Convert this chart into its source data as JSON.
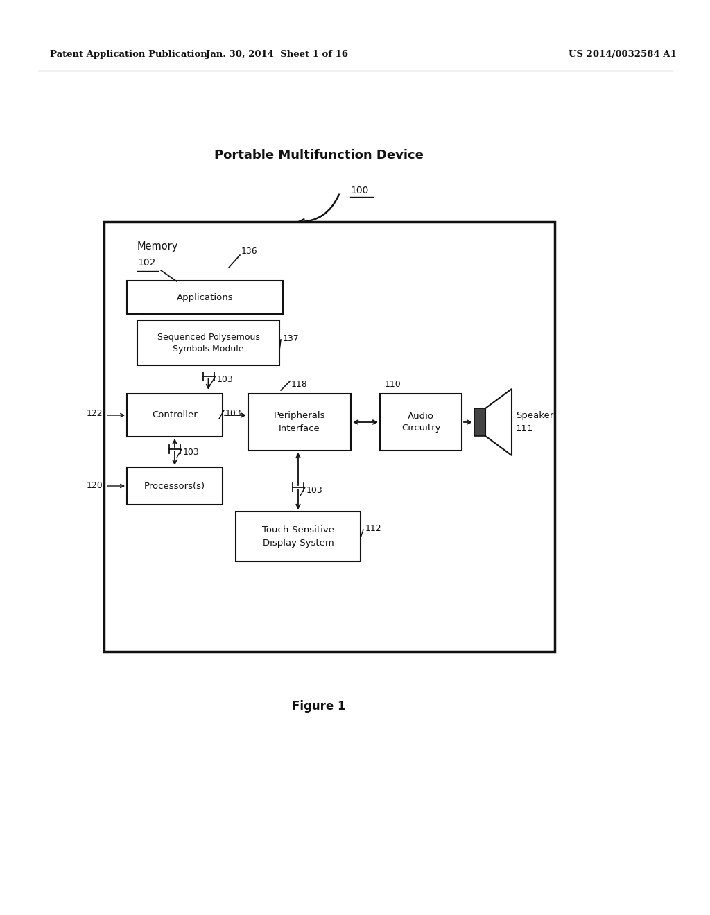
{
  "bg_color": "#ffffff",
  "header_left": "Patent Application Publication",
  "header_center": "Jan. 30, 2014  Sheet 1 of 16",
  "header_right": "US 2014/0032584 A1",
  "title": "Portable Multifunction Device",
  "figure_label": "Figure 1",
  "ref_100": "100",
  "ref_102": "102",
  "ref_103": "103",
  "ref_110": "110",
  "ref_112": "112",
  "ref_118": "118",
  "ref_120": "120",
  "ref_122": "122",
  "ref_136": "136",
  "ref_137": "137",
  "memory_label": "Memory",
  "applications_label": "Applications",
  "spsm_line1": "Sequenced Polysemous",
  "spsm_line2": "Symbols Module",
  "controller_label": "Controller",
  "peripherals_line1": "Peripherals",
  "peripherals_line2": "Interface",
  "audio_line1": "Audio",
  "audio_line2": "Circuitry",
  "speaker_line1": "Speaker",
  "speaker_line2": "111",
  "processors_label": "Processors(s)",
  "touchdisp_line1": "Touch-Sensitive",
  "touchdisp_line2": "Display System",
  "text_color": "#111111",
  "box_edge_color": "#111111",
  "box_face_color": "#ffffff",
  "line_color": "#111111",
  "font_size_header": 9.5,
  "font_size_title": 13,
  "font_size_box": 9.5,
  "font_size_ref": 9,
  "font_size_figure": 12
}
